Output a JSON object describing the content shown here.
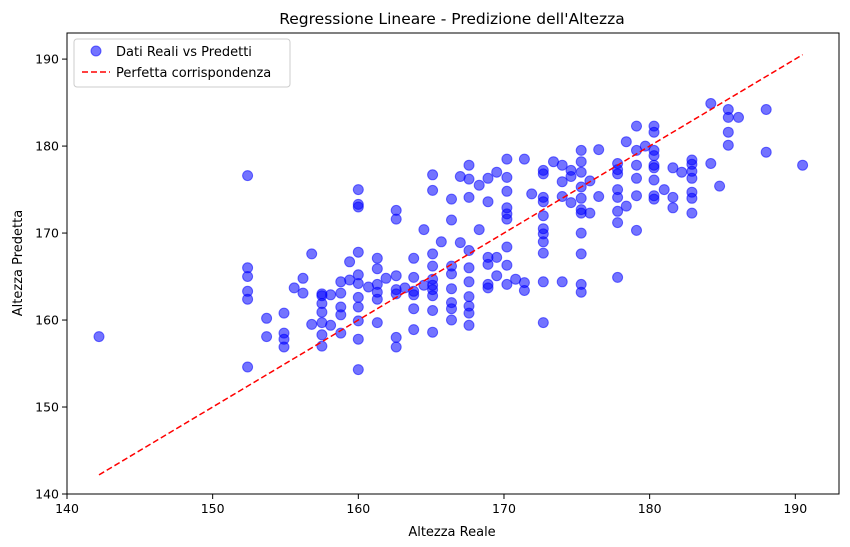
{
  "chart_data": {
    "type": "scatter",
    "title": "Regressione Lineare - Predizione dell'Altezza",
    "xlabel": "Altezza Reale",
    "ylabel": "Altezza Predetta",
    "xlim": [
      140,
      193
    ],
    "ylim": [
      140,
      193
    ],
    "xticks": [
      140,
      150,
      160,
      170,
      180,
      190
    ],
    "yticks": [
      140,
      150,
      160,
      170,
      180,
      190
    ],
    "grid": false,
    "legend_position": "top-left",
    "series": [
      {
        "name": "Dati Reali vs Predetti",
        "kind": "scatter",
        "color": "#0000ff",
        "points": [
          [
            142.2,
            158.1
          ],
          [
            152.4,
            176.6
          ],
          [
            152.4,
            166.0
          ],
          [
            152.4,
            165.0
          ],
          [
            152.4,
            163.3
          ],
          [
            152.4,
            162.4
          ],
          [
            152.4,
            154.6
          ],
          [
            153.7,
            160.2
          ],
          [
            153.7,
            158.1
          ],
          [
            154.9,
            160.8
          ],
          [
            154.9,
            158.5
          ],
          [
            154.9,
            157.8
          ],
          [
            154.9,
            156.9
          ],
          [
            155.6,
            163.7
          ],
          [
            156.2,
            164.8
          ],
          [
            156.2,
            163.1
          ],
          [
            156.8,
            167.6
          ],
          [
            156.8,
            159.5
          ],
          [
            157.5,
            163.0
          ],
          [
            157.5,
            162.8
          ],
          [
            157.5,
            161.9
          ],
          [
            157.5,
            160.9
          ],
          [
            157.5,
            159.7
          ],
          [
            157.5,
            158.3
          ],
          [
            157.5,
            157.0
          ],
          [
            158.1,
            162.9
          ],
          [
            158.1,
            159.4
          ],
          [
            158.8,
            164.4
          ],
          [
            158.8,
            163.1
          ],
          [
            158.8,
            161.5
          ],
          [
            158.8,
            160.6
          ],
          [
            158.8,
            158.5
          ],
          [
            159.4,
            166.7
          ],
          [
            159.4,
            164.6
          ],
          [
            160.0,
            175.0
          ],
          [
            160.0,
            173.3
          ],
          [
            160.0,
            173.0
          ],
          [
            160.0,
            167.8
          ],
          [
            160.0,
            165.2
          ],
          [
            160.0,
            164.2
          ],
          [
            160.0,
            162.6
          ],
          [
            160.0,
            161.5
          ],
          [
            160.0,
            159.9
          ],
          [
            160.0,
            157.8
          ],
          [
            160.0,
            154.3
          ],
          [
            160.7,
            163.8
          ],
          [
            161.3,
            167.1
          ],
          [
            161.3,
            165.9
          ],
          [
            161.3,
            164.1
          ],
          [
            161.3,
            163.2
          ],
          [
            161.3,
            162.4
          ],
          [
            161.3,
            159.7
          ],
          [
            161.9,
            164.8
          ],
          [
            162.6,
            172.6
          ],
          [
            162.6,
            171.6
          ],
          [
            162.6,
            165.1
          ],
          [
            162.6,
            163.5
          ],
          [
            162.6,
            163.0
          ],
          [
            162.6,
            158.0
          ],
          [
            162.6,
            156.9
          ],
          [
            163.2,
            163.7
          ],
          [
            163.8,
            167.1
          ],
          [
            163.8,
            164.9
          ],
          [
            163.8,
            163.3
          ],
          [
            163.8,
            162.9
          ],
          [
            163.8,
            161.3
          ],
          [
            163.8,
            158.9
          ],
          [
            164.5,
            170.4
          ],
          [
            164.5,
            164.0
          ],
          [
            165.1,
            176.7
          ],
          [
            165.1,
            174.9
          ],
          [
            165.1,
            167.6
          ],
          [
            165.1,
            166.2
          ],
          [
            165.1,
            164.7
          ],
          [
            165.1,
            164.0
          ],
          [
            165.1,
            163.5
          ],
          [
            165.1,
            162.8
          ],
          [
            165.1,
            161.1
          ],
          [
            165.1,
            158.6
          ],
          [
            165.7,
            169.0
          ],
          [
            166.4,
            173.9
          ],
          [
            166.4,
            171.5
          ],
          [
            166.4,
            166.2
          ],
          [
            166.4,
            165.3
          ],
          [
            166.4,
            163.6
          ],
          [
            166.4,
            162.0
          ],
          [
            166.4,
            161.3
          ],
          [
            166.4,
            160.0
          ],
          [
            167.0,
            176.5
          ],
          [
            167.0,
            168.9
          ],
          [
            167.6,
            177.8
          ],
          [
            167.6,
            176.2
          ],
          [
            167.6,
            174.1
          ],
          [
            167.6,
            168.0
          ],
          [
            167.6,
            166.0
          ],
          [
            167.6,
            164.4
          ],
          [
            167.6,
            162.7
          ],
          [
            167.6,
            161.6
          ],
          [
            167.6,
            160.8
          ],
          [
            167.6,
            159.4
          ],
          [
            168.3,
            175.5
          ],
          [
            168.3,
            170.4
          ],
          [
            168.9,
            176.3
          ],
          [
            168.9,
            173.6
          ],
          [
            168.9,
            167.2
          ],
          [
            168.9,
            166.4
          ],
          [
            168.9,
            164.1
          ],
          [
            168.9,
            163.7
          ],
          [
            169.5,
            177.0
          ],
          [
            169.5,
            167.2
          ],
          [
            169.5,
            165.1
          ],
          [
            170.2,
            178.5
          ],
          [
            170.2,
            176.4
          ],
          [
            170.2,
            174.8
          ],
          [
            170.2,
            172.9
          ],
          [
            170.2,
            172.2
          ],
          [
            170.2,
            171.6
          ],
          [
            170.2,
            168.4
          ],
          [
            170.2,
            166.3
          ],
          [
            170.2,
            164.1
          ],
          [
            170.8,
            164.7
          ],
          [
            171.4,
            178.5
          ],
          [
            171.4,
            164.3
          ],
          [
            171.4,
            163.4
          ],
          [
            171.9,
            174.5
          ],
          [
            172.7,
            177.2
          ],
          [
            172.7,
            176.8
          ],
          [
            172.7,
            174.1
          ],
          [
            172.7,
            173.6
          ],
          [
            172.7,
            172.0
          ],
          [
            172.7,
            170.5
          ],
          [
            172.7,
            169.9
          ],
          [
            172.7,
            169.0
          ],
          [
            172.7,
            167.7
          ],
          [
            172.7,
            164.4
          ],
          [
            172.7,
            159.7
          ],
          [
            173.4,
            178.2
          ],
          [
            174.0,
            177.8
          ],
          [
            174.0,
            175.9
          ],
          [
            174.0,
            174.2
          ],
          [
            174.0,
            164.4
          ],
          [
            174.6,
            177.2
          ],
          [
            174.6,
            176.5
          ],
          [
            174.6,
            173.5
          ],
          [
            175.3,
            179.5
          ],
          [
            175.3,
            178.2
          ],
          [
            175.3,
            177.0
          ],
          [
            175.3,
            175.3
          ],
          [
            175.3,
            174.0
          ],
          [
            175.3,
            172.7
          ],
          [
            175.3,
            172.3
          ],
          [
            175.3,
            170.0
          ],
          [
            175.3,
            167.6
          ],
          [
            175.3,
            164.1
          ],
          [
            175.3,
            163.2
          ],
          [
            175.9,
            176.0
          ],
          [
            175.9,
            172.3
          ],
          [
            176.5,
            179.6
          ],
          [
            176.5,
            174.2
          ],
          [
            177.8,
            178.0
          ],
          [
            177.8,
            177.3
          ],
          [
            177.8,
            176.8
          ],
          [
            177.8,
            175.0
          ],
          [
            177.8,
            174.1
          ],
          [
            177.8,
            172.5
          ],
          [
            177.8,
            171.2
          ],
          [
            177.8,
            164.9
          ],
          [
            178.4,
            180.5
          ],
          [
            178.4,
            173.1
          ],
          [
            179.1,
            182.3
          ],
          [
            179.1,
            179.5
          ],
          [
            179.1,
            177.8
          ],
          [
            179.1,
            176.3
          ],
          [
            179.1,
            174.3
          ],
          [
            179.1,
            170.3
          ],
          [
            179.7,
            180.0
          ],
          [
            180.3,
            182.3
          ],
          [
            180.3,
            181.6
          ],
          [
            180.3,
            179.5
          ],
          [
            180.3,
            178.9
          ],
          [
            180.3,
            177.8
          ],
          [
            180.3,
            177.5
          ],
          [
            180.3,
            176.1
          ],
          [
            180.3,
            174.3
          ],
          [
            180.3,
            173.9
          ],
          [
            181.0,
            175.0
          ],
          [
            181.6,
            177.5
          ],
          [
            181.6,
            174.1
          ],
          [
            181.6,
            172.9
          ],
          [
            182.2,
            177.0
          ],
          [
            182.9,
            178.4
          ],
          [
            182.9,
            177.9
          ],
          [
            182.9,
            177.1
          ],
          [
            182.9,
            176.3
          ],
          [
            182.9,
            174.7
          ],
          [
            182.9,
            174.0
          ],
          [
            182.9,
            172.3
          ],
          [
            184.2,
            184.9
          ],
          [
            184.2,
            178.0
          ],
          [
            184.8,
            175.4
          ],
          [
            185.4,
            184.2
          ],
          [
            185.4,
            183.3
          ],
          [
            185.4,
            181.6
          ],
          [
            185.4,
            180.1
          ],
          [
            186.1,
            183.3
          ],
          [
            188.0,
            184.2
          ],
          [
            188.0,
            179.3
          ],
          [
            190.5,
            177.8
          ]
        ]
      },
      {
        "name": "Perfetta corrispondenza",
        "kind": "line",
        "style": "dashed",
        "color": "#ff0000",
        "points": [
          [
            142.2,
            142.2
          ],
          [
            190.5,
            190.5
          ]
        ]
      }
    ]
  }
}
